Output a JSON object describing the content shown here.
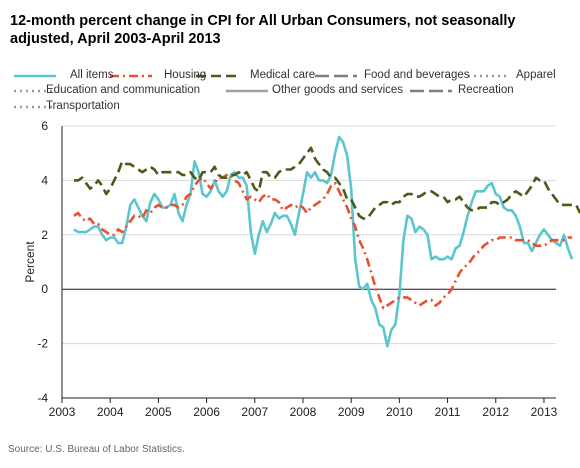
{
  "chart_data": {
    "type": "line",
    "title": "12-month percent change in CPI for All Urban Consumers, not seasonally adjusted, April 2003-April 2013",
    "ylabel": "Percent",
    "xlabel": "",
    "x_start": "2003-04",
    "x_step": "month",
    "xlim": [
      "2003-01",
      "2013-04"
    ],
    "ylim": [
      -4,
      6
    ],
    "x_ticks": [
      "2003",
      "2004",
      "2005",
      "2006",
      "2007",
      "2008",
      "2009",
      "2010",
      "2011",
      "2012",
      "2013"
    ],
    "y_ticks": [
      "-4",
      "-2",
      "0",
      "2",
      "4",
      "6"
    ],
    "grid": "horizontal",
    "legend_placement": "top",
    "source": "Source: U.S. Bureau of Labor Statistics.",
    "legend_entries": [
      {
        "name": "All items",
        "color": "#5cc6cf",
        "style": "solid"
      },
      {
        "name": "Housing",
        "color": "#e8502e",
        "style": "dashdot"
      },
      {
        "name": "Medical care",
        "color": "#4d5a19",
        "style": "dashed"
      },
      {
        "name": "Food and beverages",
        "color": "#7f7f7f",
        "style": "longdash"
      },
      {
        "name": "Apparel",
        "color": "#9a9a9a",
        "style": "dotted"
      },
      {
        "name": "Education and communication",
        "color": "#9a9a9a",
        "style": "dotted"
      },
      {
        "name": "Other goods and services",
        "color": "#a0a0a0",
        "style": "solid"
      },
      {
        "name": "Recreation",
        "color": "#7f7f7f",
        "style": "longdash"
      },
      {
        "name": "Transportation",
        "color": "#9a9a9a",
        "style": "dotted"
      }
    ],
    "series": [
      {
        "name": "All items",
        "color": "#5cc6cf",
        "style": "solid",
        "values": [
          2.2,
          2.1,
          2.1,
          2.1,
          2.2,
          2.3,
          2.3,
          2.0,
          1.8,
          1.9,
          1.9,
          1.7,
          1.7,
          2.3,
          3.1,
          3.3,
          3.0,
          2.7,
          2.5,
          3.2,
          3.5,
          3.3,
          3.0,
          3.0,
          3.1,
          3.5,
          2.8,
          2.5,
          3.1,
          3.5,
          4.7,
          4.3,
          3.5,
          3.4,
          3.6,
          4.0,
          3.6,
          3.4,
          3.6,
          4.2,
          4.3,
          4.1,
          4.1,
          3.8,
          2.1,
          1.3,
          2.0,
          2.5,
          2.1,
          2.4,
          2.8,
          2.6,
          2.7,
          2.7,
          2.4,
          2.0,
          2.8,
          3.5,
          4.3,
          4.1,
          4.3,
          4.0,
          4.0,
          3.9,
          4.2,
          5.0,
          5.6,
          5.4,
          4.9,
          3.7,
          1.1,
          0.1,
          0.0,
          0.2,
          -0.4,
          -0.7,
          -1.3,
          -1.4,
          -2.1,
          -1.5,
          -1.3,
          -0.2,
          1.8,
          2.7,
          2.6,
          2.1,
          2.3,
          2.2,
          2.0,
          1.1,
          1.2,
          1.1,
          1.1,
          1.2,
          1.1,
          1.5,
          1.6,
          2.1,
          2.7,
          3.2,
          3.6,
          3.6,
          3.6,
          3.8,
          3.9,
          3.5,
          3.4,
          3.0,
          2.9,
          2.9,
          2.7,
          2.3,
          1.7,
          1.7,
          1.4,
          1.7,
          2.0,
          2.2,
          2.0,
          1.8,
          1.7,
          1.6,
          2.0,
          1.5,
          1.1
        ]
      },
      {
        "name": "Housing",
        "color": "#e8502e",
        "style": "dashdot",
        "values": [
          2.7,
          2.8,
          2.6,
          2.5,
          2.6,
          2.4,
          2.4,
          2.2,
          2.1,
          2.0,
          2.0,
          2.2,
          2.1,
          2.3,
          2.5,
          2.7,
          2.7,
          2.6,
          2.9,
          2.8,
          3.0,
          3.1,
          3.0,
          3.0,
          3.1,
          3.1,
          3.0,
          3.1,
          3.4,
          3.5,
          3.8,
          4.0,
          4.1,
          3.9,
          3.7,
          3.9,
          4.1,
          4.1,
          4.2,
          4.2,
          4.0,
          3.9,
          3.6,
          3.3,
          3.4,
          3.3,
          3.2,
          3.4,
          3.5,
          3.3,
          3.3,
          3.2,
          2.9,
          3.0,
          3.1,
          3.0,
          3.1,
          3.0,
          2.8,
          3.0,
          3.1,
          3.2,
          3.3,
          3.5,
          3.8,
          3.9,
          3.6,
          3.3,
          3.0,
          2.6,
          2.3,
          1.8,
          1.5,
          1.1,
          0.6,
          0.1,
          -0.3,
          -0.7,
          -0.6,
          -0.5,
          -0.4,
          -0.3,
          -0.3,
          -0.3,
          -0.4,
          -0.5,
          -0.6,
          -0.5,
          -0.4,
          -0.4,
          -0.6,
          -0.5,
          -0.3,
          -0.2,
          0.0,
          0.3,
          0.6,
          0.8,
          0.9,
          1.1,
          1.3,
          1.4,
          1.6,
          1.7,
          1.8,
          1.8,
          1.9,
          1.9,
          1.9,
          1.9,
          1.8,
          1.8,
          1.8,
          1.8,
          1.7,
          1.6,
          1.6,
          1.6,
          1.7,
          1.8,
          1.8,
          1.8,
          1.8,
          1.9,
          1.9
        ]
      },
      {
        "name": "Medical care",
        "color": "#4d5a19",
        "style": "dashed",
        "values": [
          4.0,
          4.0,
          4.1,
          3.9,
          3.7,
          3.8,
          4.0,
          3.8,
          3.5,
          3.7,
          4.0,
          4.3,
          4.7,
          4.6,
          4.6,
          4.5,
          4.4,
          4.3,
          4.4,
          4.5,
          4.4,
          4.2,
          4.3,
          4.3,
          4.3,
          4.3,
          4.3,
          4.2,
          4.2,
          4.3,
          4.1,
          4.0,
          4.3,
          4.3,
          4.3,
          4.5,
          4.2,
          4.1,
          4.1,
          4.2,
          4.2,
          4.3,
          4.2,
          4.3,
          4.0,
          3.7,
          3.6,
          4.3,
          4.3,
          4.1,
          4.1,
          4.3,
          4.4,
          4.4,
          4.4,
          4.5,
          4.6,
          4.8,
          5.0,
          5.2,
          4.8,
          4.6,
          4.4,
          4.3,
          4.1,
          4.1,
          3.9,
          3.7,
          3.3,
          3.3,
          3.0,
          2.7,
          2.6,
          2.6,
          2.8,
          3.0,
          3.1,
          3.2,
          3.2,
          3.1,
          3.2,
          3.2,
          3.4,
          3.5,
          3.5,
          3.4,
          3.4,
          3.5,
          3.6,
          3.6,
          3.5,
          3.4,
          3.4,
          3.2,
          3.3,
          3.3,
          3.4,
          3.2,
          3.0,
          2.9,
          2.9,
          3.0,
          3.0,
          3.0,
          3.2,
          3.2,
          3.1,
          3.2,
          3.3,
          3.5,
          3.6,
          3.5,
          3.4,
          3.6,
          3.8,
          4.1,
          4.0,
          4.0,
          3.7,
          3.5,
          3.3,
          3.1,
          3.1,
          3.1,
          3.1,
          3.1,
          2.8
        ]
      }
    ]
  }
}
